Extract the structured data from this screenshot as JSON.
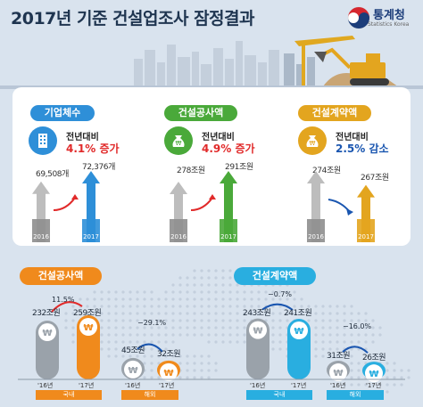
{
  "title": "2017년 기준 건설업조사 잠정결과",
  "org": {
    "name": "통계청",
    "sub": "Statistics Korea"
  },
  "top_summary": [
    {
      "label": "기업체수",
      "prefix": "전년대비",
      "change": "4.1% 증가",
      "v2016": "69,508개",
      "v2017": "72,376개",
      "accent": "#2e8fd8"
    },
    {
      "label": "건설공사액",
      "prefix": "전년대비",
      "change": "4.9% 증가",
      "v2016": "278조원",
      "v2017": "291조원",
      "accent": "#4aa93a"
    },
    {
      "label": "건설계약액",
      "prefix": "전년대비",
      "change": "2.5% 감소",
      "v2016": "274조원",
      "v2017": "267조원",
      "accent": "#e3a51f"
    }
  ],
  "years": {
    "y2016": "2016",
    "y2017": "2017"
  },
  "sections": {
    "construction": {
      "label": "건설공사액",
      "domestic": {
        "v16": "232조원",
        "v17": "259조원",
        "pct": "11.5%",
        "cat": "국내"
      },
      "overseas": {
        "v16": "45조원",
        "v17": "32조원",
        "pct": "−29.1%",
        "cat": "해외"
      }
    },
    "contract": {
      "label": "건설계약액",
      "domestic": {
        "v16": "243조원",
        "v17": "241조원",
        "pct": "−0.7%",
        "cat": "국내"
      },
      "overseas": {
        "v16": "31조원",
        "v17": "26조원",
        "pct": "−16.0%",
        "cat": "해외"
      }
    }
  },
  "axis_labels": {
    "y16": "'16년",
    "y17": "'17년"
  },
  "colors": {
    "navy": "#1f3550",
    "blue": "#2e8fd8",
    "green": "#4aa93a",
    "gold": "#e3a51f",
    "orange": "#f08a1c",
    "teal": "#29aee0"
  },
  "chart_data": {
    "type": "bar",
    "categories": [
      "기업체수",
      "건설공사액",
      "건설계약액",
      "건설공사액 국내",
      "건설공사액 해외",
      "건설계약액 국내",
      "건설계약액 해외"
    ],
    "series": [
      {
        "name": "2016",
        "values": [
          69508,
          278,
          274,
          232,
          45,
          243,
          31
        ]
      },
      {
        "name": "2017",
        "values": [
          72376,
          291,
          267,
          259,
          32,
          241,
          26
        ]
      }
    ],
    "change_percent": [
      4.1,
      4.9,
      -2.5,
      11.5,
      -29.1,
      -0.7,
      -16.0
    ]
  }
}
